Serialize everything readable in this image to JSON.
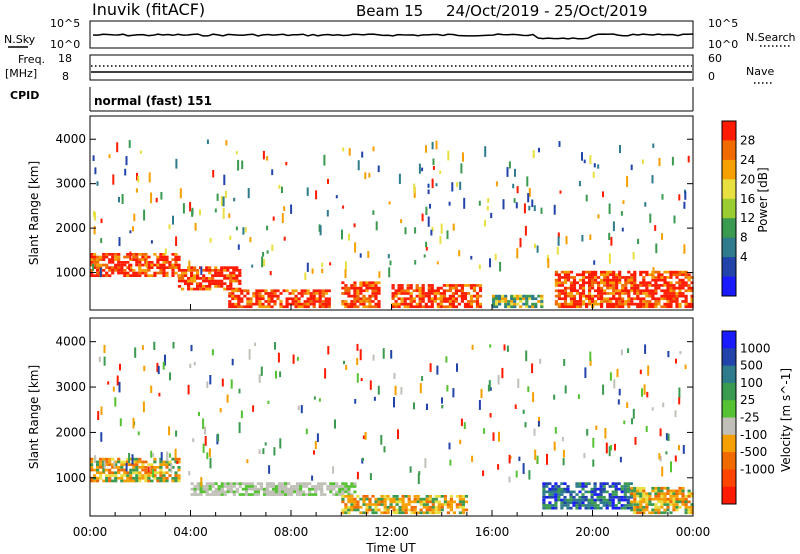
{
  "header": {
    "station": "Inuvik (fitACF)",
    "beam": "Beam 15",
    "date_range": "24/Oct/2019 - 25/Oct/2019"
  },
  "nsky_panel": {
    "left_label": "N.Sky",
    "left_ticks": [
      "10^5",
      "10^0"
    ],
    "right_ticks": [
      "10^5",
      "10^0"
    ],
    "right_label": "N.Search"
  },
  "freq_panel": {
    "left_label_line1": "Freq.",
    "left_label_line2": "[MHz]",
    "left_ticks": [
      "18",
      "8"
    ],
    "right_ticks": [
      "60",
      "0"
    ],
    "right_label": "Nave"
  },
  "cpid_panel": {
    "label": "CPID",
    "mode_text": "normal (fast) 151"
  },
  "x_axis": {
    "title": "Time UT",
    "ticks": [
      "00:00",
      "04:00",
      "08:00",
      "12:00",
      "16:00",
      "20:00",
      "00:00"
    ]
  },
  "colors": {
    "blue": "#1a1aff",
    "dark_blue": "#2244aa",
    "teal": "#2e7b8c",
    "green": "#3a9a50",
    "light_green": "#55c233",
    "yellow": "#e8e040",
    "orange": "#f5a000",
    "dark_orange": "#f06a00",
    "red": "#ff1a00",
    "gray": "#c0c0b8"
  },
  "chart_data": [
    {
      "type": "heatmap",
      "title": "",
      "ylabel": "Slant Range [km]",
      "yticks": [
        "1000",
        "2000",
        "3000",
        "4000"
      ],
      "ylim": [
        180,
        4500
      ],
      "xlim_hours": [
        0,
        24
      ],
      "colorbar": {
        "label": "Power [dB]",
        "tick_labels": [
          "28",
          "24",
          "20",
          "16",
          "12",
          "8",
          "4"
        ],
        "colors": [
          "#ff1a00",
          "#f06a00",
          "#f5a000",
          "#e8e040",
          "#9acd32",
          "#3a9a50",
          "#2e7b8c",
          "#2244aa",
          "#1a1aff"
        ]
      },
      "bands": [
        {
          "hours": [
            0,
            3.5
          ],
          "range_km": [
            900,
            1400
          ],
          "level": "high"
        },
        {
          "hours": [
            3.5,
            6
          ],
          "range_km": [
            600,
            1100
          ],
          "level": "high"
        },
        {
          "hours": [
            5.5,
            9.5
          ],
          "range_km": [
            200,
            600
          ],
          "level": "high"
        },
        {
          "hours": [
            10,
            11.5
          ],
          "range_km": [
            200,
            800
          ],
          "level": "high"
        },
        {
          "hours": [
            12,
            15.5
          ],
          "range_km": [
            200,
            700
          ],
          "level": "high"
        },
        {
          "hours": [
            16,
            18
          ],
          "range_km": [
            200,
            500
          ],
          "level": "medium"
        },
        {
          "hours": [
            18.5,
            24
          ],
          "range_km": [
            200,
            1000
          ],
          "level": "high"
        }
      ]
    },
    {
      "type": "heatmap",
      "title": "",
      "ylabel": "Slant Range [km]",
      "yticks": [
        "1000",
        "2000",
        "3000",
        "4000"
      ],
      "ylim": [
        180,
        4500
      ],
      "xlim_hours": [
        0,
        24
      ],
      "colorbar": {
        "label": "Velocity [m s^-1]",
        "tick_labels": [
          "1000",
          "500",
          "100",
          "25",
          "-25",
          "-100",
          "-500",
          "-1000"
        ],
        "colors": [
          "#1a1aff",
          "#2244aa",
          "#2e7b8c",
          "#3a9a50",
          "#55c233",
          "#c0c0b8",
          "#f5a000",
          "#f06a00",
          "#ff4400",
          "#ff1a00"
        ]
      },
      "bands": [
        {
          "hours": [
            0,
            3.5
          ],
          "range_km": [
            900,
            1400
          ],
          "level": "orange"
        },
        {
          "hours": [
            4,
            8
          ],
          "range_km": [
            600,
            900
          ],
          "level": "gray"
        },
        {
          "hours": [
            7,
            10.5
          ],
          "range_km": [
            600,
            900
          ],
          "level": "gray"
        },
        {
          "hours": [
            10,
            15
          ],
          "range_km": [
            200,
            600
          ],
          "level": "orange"
        },
        {
          "hours": [
            18,
            21.5
          ],
          "range_km": [
            300,
            900
          ],
          "level": "blue"
        },
        {
          "hours": [
            21.5,
            24
          ],
          "range_km": [
            200,
            800
          ],
          "level": "orange"
        }
      ]
    }
  ]
}
